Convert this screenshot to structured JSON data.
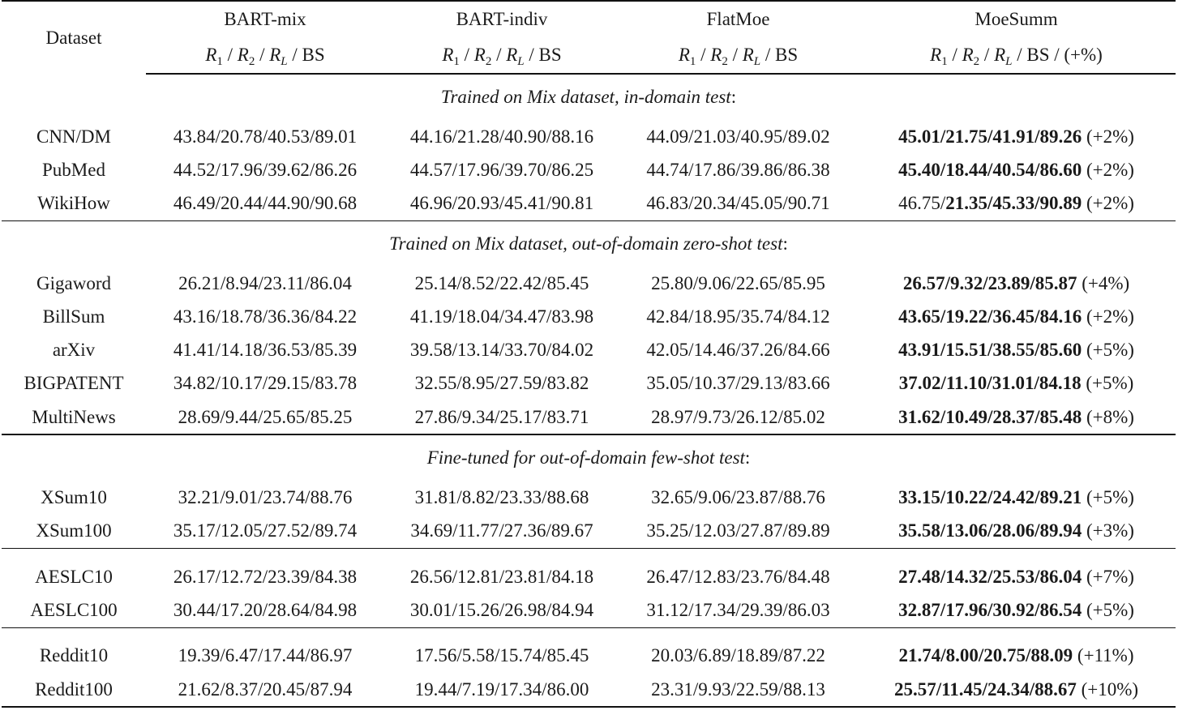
{
  "header": {
    "dataset_label": "Dataset",
    "models": [
      {
        "name": "BART-mix",
        "metric_suffix": ""
      },
      {
        "name": "BART-indiv",
        "metric_suffix": ""
      },
      {
        "name": "FlatMoe",
        "metric_suffix": ""
      },
      {
        "name": "MoeSumm",
        "metric_suffix": " / (+%)"
      }
    ],
    "metric_r": "R",
    "metric_1": "1",
    "metric_2": "2",
    "metric_L": "L",
    "metric_bs": "BS"
  },
  "groups": [
    {
      "title": "Trained on Mix dataset, in-domain test",
      "rule": "thin",
      "rows": [
        {
          "dataset": "CNN/DM",
          "mix": "43.84/20.78/40.53/89.01",
          "indiv": "44.16/21.28/40.90/88.16",
          "flat": "44.09/21.03/40.95/89.02",
          "moe_plain": "",
          "moe_bold": "45.01/21.75/41.91/89.26",
          "gain": "(+2%)"
        },
        {
          "dataset": "PubMed",
          "mix": "44.52/17.96/39.62/86.26",
          "indiv": "44.57/17.96/39.70/86.25",
          "flat": "44.74/17.86/39.86/86.38",
          "moe_plain": "",
          "moe_bold": "45.40/18.44/40.54/86.60",
          "gain": "(+2%)"
        },
        {
          "dataset": "WikiHow",
          "mix": "46.49/20.44/44.90/90.68",
          "indiv": "46.96/20.93/45.41/90.81",
          "flat": "46.83/20.34/45.05/90.71",
          "moe_plain": "46.75/",
          "moe_bold": "21.35/45.33/90.89",
          "gain": "(+2%)"
        }
      ]
    },
    {
      "title": "Trained on Mix dataset, out-of-domain zero-shot test",
      "rule": "thin",
      "rows": [
        {
          "dataset": "Gigaword",
          "mix": "26.21/8.94/23.11/86.04",
          "indiv": "25.14/8.52/22.42/85.45",
          "flat": "25.80/9.06/22.65/85.95",
          "moe_plain": "",
          "moe_bold": "26.57/9.32/23.89/85.87",
          "gain": "(+4%)"
        },
        {
          "dataset": "BillSum",
          "mix": "43.16/18.78/36.36/84.22",
          "indiv": "41.19/18.04/34.47/83.98",
          "flat": "42.84/18.95/35.74/84.12",
          "moe_plain": "",
          "moe_bold": "43.65/19.22/36.45/84.16",
          "gain": "(+2%)"
        },
        {
          "dataset": "arXiv",
          "mix": "41.41/14.18/36.53/85.39",
          "indiv": "39.58/13.14/33.70/84.02",
          "flat": "42.05/14.46/37.26/84.66",
          "moe_plain": "",
          "moe_bold": "43.91/15.51/38.55/85.60",
          "gain": "(+5%)"
        },
        {
          "dataset": "BIGPATENT",
          "mix": "34.82/10.17/29.15/83.78",
          "indiv": "32.55/8.95/27.59/83.82",
          "flat": "35.05/10.37/29.13/83.66",
          "moe_plain": "",
          "moe_bold": "37.02/11.10/31.01/84.18",
          "gain": "(+5%)"
        },
        {
          "dataset": "MultiNews",
          "mix": "28.69/9.44/25.65/85.25",
          "indiv": "27.86/9.34/25.17/83.71",
          "flat": "28.97/9.73/26.12/85.02",
          "moe_plain": "",
          "moe_bold": "31.62/10.49/28.37/85.48",
          "gain": "(+8%)"
        }
      ]
    },
    {
      "title": "Fine-tuned for out-of-domain few-shot test",
      "rule": "thick",
      "rows": [
        {
          "dataset": "XSum10",
          "mix": "32.21/9.01/23.74/88.76",
          "indiv": "31.81/8.82/23.33/88.68",
          "flat": "32.65/9.06/23.87/88.76",
          "moe_plain": "",
          "moe_bold": "33.15/10.22/24.42/89.21",
          "gain": "(+5%)"
        },
        {
          "dataset": "XSum100",
          "mix": "35.17/12.05/27.52/89.74",
          "indiv": "34.69/11.77/27.36/89.67",
          "flat": "35.25/12.03/27.87/89.89",
          "moe_plain": "",
          "moe_bold": "35.58/13.06/28.06/89.94",
          "gain": "(+3%)"
        }
      ]
    },
    {
      "title": "",
      "rule": "thin",
      "rows": [
        {
          "dataset": "AESLC10",
          "mix": "26.17/12.72/23.39/84.38",
          "indiv": "26.56/12.81/23.81/84.18",
          "flat": "26.47/12.83/23.76/84.48",
          "moe_plain": "",
          "moe_bold": "27.48/14.32/25.53/86.04",
          "gain": "(+7%)"
        },
        {
          "dataset": "AESLC100",
          "mix": "30.44/17.20/28.64/84.98",
          "indiv": "30.01/15.26/26.98/84.94",
          "flat": "31.12/17.34/29.39/86.03",
          "moe_plain": "",
          "moe_bold": "32.87/17.96/30.92/86.54",
          "gain": "(+5%)"
        }
      ]
    },
    {
      "title": "",
      "rule": "thin",
      "rows": [
        {
          "dataset": "Reddit10",
          "mix": "19.39/6.47/17.44/86.97",
          "indiv": "17.56/5.58/15.74/85.45",
          "flat": "20.03/6.89/18.89/87.22",
          "moe_plain": "",
          "moe_bold": "21.74/8.00/20.75/88.09",
          "gain": "(+11%)"
        },
        {
          "dataset": "Reddit100",
          "mix": "21.62/8.37/20.45/87.94",
          "indiv": "19.44/7.19/17.34/86.00",
          "flat": "23.31/9.93/22.59/88.13",
          "moe_plain": "",
          "moe_bold": "25.57/11.45/24.34/88.67",
          "gain": "(+10%)"
        }
      ]
    }
  ]
}
